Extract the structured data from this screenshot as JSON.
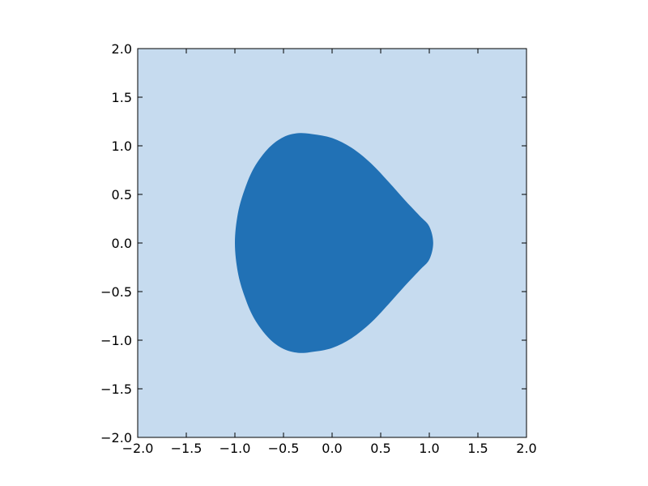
{
  "chart_data": {
    "type": "area",
    "title": "",
    "xlabel": "",
    "ylabel": "",
    "xlim": [
      -2.0,
      2.0
    ],
    "ylim": [
      -2.0,
      2.0
    ],
    "grid": false,
    "xticks": [
      -2.0,
      -1.5,
      -1.0,
      -0.5,
      0.0,
      0.5,
      1.0,
      1.5,
      2.0
    ],
    "yticks": [
      -2.0,
      -1.5,
      -1.0,
      -0.5,
      0.0,
      0.5,
      1.0,
      1.5,
      2.0
    ],
    "xtick_labels": [
      "−2.0",
      "−1.5",
      "−1.0",
      "−0.5",
      "0.0",
      "0.5",
      "1.0",
      "1.5",
      "2.0"
    ],
    "ytick_labels": [
      "−2.0",
      "−1.5",
      "−1.0",
      "−0.5",
      "0.0",
      "0.5",
      "1.0",
      "1.5",
      "2.0"
    ],
    "colors": {
      "background_region": "#c6dbef",
      "filled_region": "#2171b5"
    },
    "region_boundary": [
      {
        "x": 1.04,
        "y": 0.0
      },
      {
        "x": 1.0,
        "y": 0.17
      },
      {
        "x": 0.9,
        "y": 0.28
      },
      {
        "x": 0.75,
        "y": 0.44
      },
      {
        "x": 0.58,
        "y": 0.63
      },
      {
        "x": 0.4,
        "y": 0.82
      },
      {
        "x": 0.2,
        "y": 0.98
      },
      {
        "x": 0.0,
        "y": 1.08
      },
      {
        "x": -0.2,
        "y": 1.12
      },
      {
        "x": -0.35,
        "y": 1.13
      },
      {
        "x": -0.5,
        "y": 1.09
      },
      {
        "x": -0.65,
        "y": 0.98
      },
      {
        "x": -0.8,
        "y": 0.78
      },
      {
        "x": -0.9,
        "y": 0.55
      },
      {
        "x": -0.97,
        "y": 0.3
      },
      {
        "x": -1.0,
        "y": 0.0
      },
      {
        "x": -0.97,
        "y": -0.3
      },
      {
        "x": -0.9,
        "y": -0.55
      },
      {
        "x": -0.8,
        "y": -0.78
      },
      {
        "x": -0.65,
        "y": -0.98
      },
      {
        "x": -0.5,
        "y": -1.09
      },
      {
        "x": -0.35,
        "y": -1.13
      },
      {
        "x": -0.2,
        "y": -1.12
      },
      {
        "x": 0.0,
        "y": -1.08
      },
      {
        "x": 0.2,
        "y": -0.98
      },
      {
        "x": 0.4,
        "y": -0.82
      },
      {
        "x": 0.58,
        "y": -0.63
      },
      {
        "x": 0.75,
        "y": -0.44
      },
      {
        "x": 0.9,
        "y": -0.28
      },
      {
        "x": 1.0,
        "y": -0.17
      }
    ]
  }
}
